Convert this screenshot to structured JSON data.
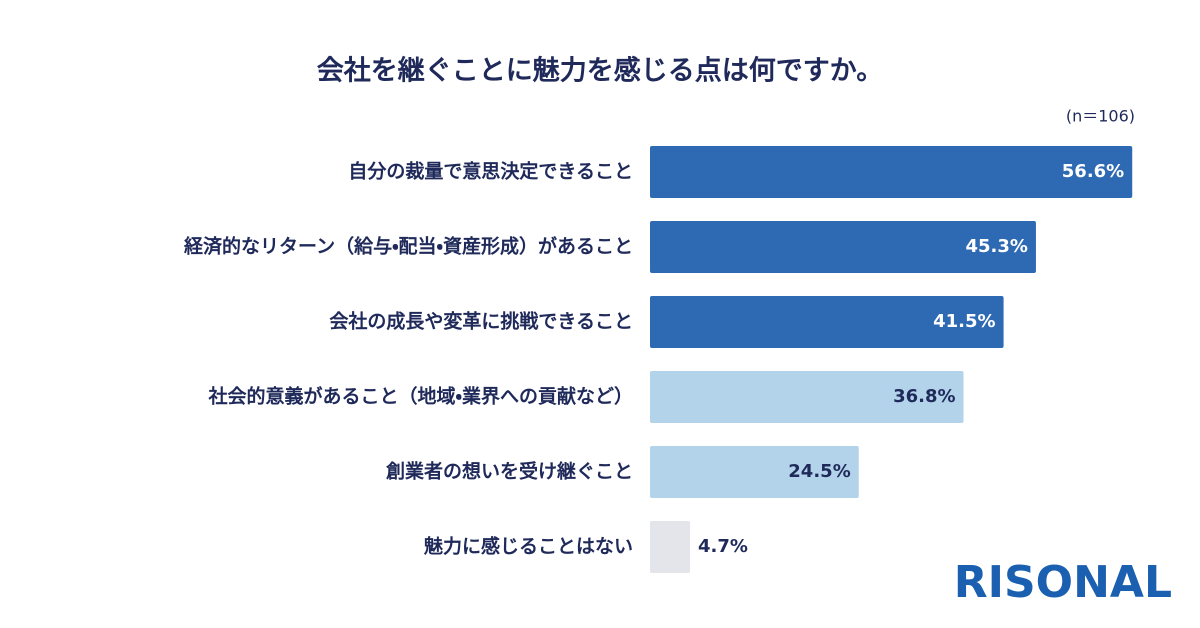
{
  "chart_data": {
    "type": "bar",
    "orientation": "horizontal",
    "title": "会社を継ぐことに魅力を感じる点は何ですか。",
    "subtitle": "(n＝106)",
    "categories": [
      "自分の裁量で意思決定できること",
      "経済的なリターン（給与・配当・資産形成）があること",
      "会社の成長や変革に挑戦できること",
      "社会的意義があること（地域・業界への貢献など）",
      "創業者の想いを受け継ぐこと",
      "魅力に感じることはない"
    ],
    "values": [
      56.6,
      45.3,
      41.5,
      36.8,
      24.5,
      4.7
    ],
    "value_labels": [
      "56.6%",
      "45.3%",
      "41.5%",
      "36.8%",
      "24.5%",
      "4.7%"
    ],
    "colors": [
      "#2d6ab3",
      "#2d6ab3",
      "#2d6ab3",
      "#b3d3ea",
      "#b3d3ea",
      "#e3e5ea"
    ],
    "grid": false
  },
  "logo": "RISONAL"
}
